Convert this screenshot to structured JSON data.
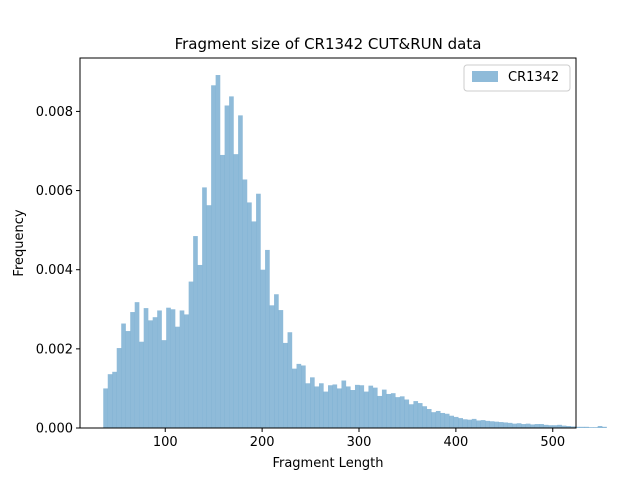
{
  "chart_data": {
    "type": "bar",
    "title": "Fragment size of CR1342 CUT&RUN data",
    "xlabel": "Fragment Length",
    "ylabel": "Frequency",
    "xlim": [
      12,
      524
    ],
    "ylim": [
      0,
      0.00935
    ],
    "xticks": [
      100,
      200,
      300,
      400,
      500
    ],
    "yticks": [
      0.0,
      0.002,
      0.004,
      0.006,
      0.008
    ],
    "ytick_labels": [
      "0.000",
      "0.002",
      "0.004",
      "0.006",
      "0.008"
    ],
    "bar_color": "#1f77b4",
    "bar_alpha": 0.5,
    "legend": {
      "placement": "top-right",
      "entries": [
        "CR1342"
      ]
    },
    "grid": false,
    "bins_start": 36,
    "bin_width": 4.64,
    "series": [
      {
        "name": "CR1342",
        "values": [
          0.001,
          0.00136,
          0.00142,
          0.00202,
          0.00264,
          0.00245,
          0.00293,
          0.00318,
          0.00218,
          0.00303,
          0.00272,
          0.0028,
          0.00297,
          0.00222,
          0.00304,
          0.003,
          0.00256,
          0.00297,
          0.00287,
          0.0037,
          0.00485,
          0.00412,
          0.00608,
          0.00563,
          0.00866,
          0.00892,
          0.0069,
          0.00815,
          0.00838,
          0.00692,
          0.0079,
          0.00628,
          0.0057,
          0.00522,
          0.00592,
          0.004,
          0.0045,
          0.0031,
          0.00338,
          0.00298,
          0.00215,
          0.00242,
          0.0015,
          0.00162,
          0.00158,
          0.00113,
          0.00128,
          0.00105,
          0.00113,
          0.00092,
          0.00108,
          0.0011,
          0.001,
          0.0012,
          0.00105,
          0.00096,
          0.00109,
          0.00108,
          0.00092,
          0.00107,
          0.00102,
          0.00081,
          0.00097,
          0.00086,
          0.00088,
          0.00078,
          0.0008,
          0.00072,
          0.0006,
          0.00068,
          0.00063,
          0.00055,
          0.00048,
          0.0004,
          0.00043,
          0.00038,
          0.00036,
          0.00031,
          0.00028,
          0.00025,
          0.00022,
          0.00021,
          0.00023,
          0.00019,
          0.0002,
          0.00018,
          0.00017,
          0.00016,
          0.00015,
          0.00014,
          0.00013,
          0.00011,
          0.00012,
          0.0001,
          0.00011,
          9e-05,
          0.0001,
          0.0001,
          8e-05,
          7e-05,
          7e-05,
          8e-05,
          6e-05,
          5e-05,
          4e-05,
          3e-05,
          3e-05,
          3e-05,
          2e-05,
          2e-05,
          5e-05,
          3e-05
        ]
      }
    ]
  }
}
